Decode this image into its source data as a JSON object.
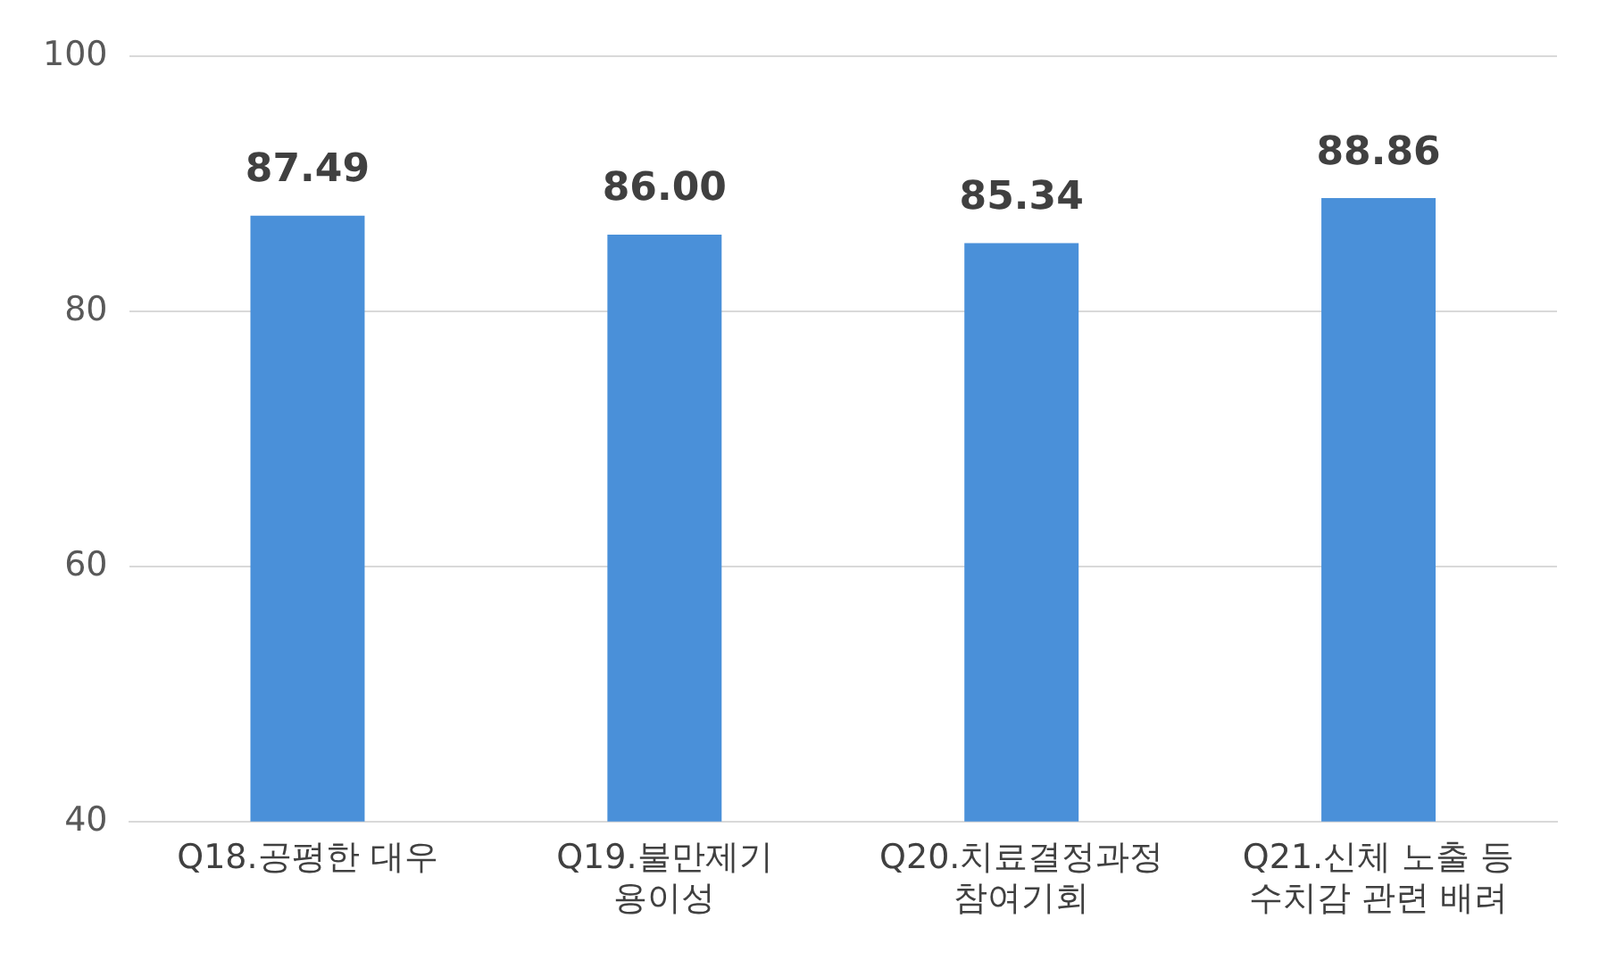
{
  "chart_data": {
    "type": "bar",
    "categories": [
      "Q18.공평한 대우",
      "Q19.불만제기\n용이성",
      "Q20.치료결정과정\n참여기회",
      "Q21.신체 노출 등\n수치감 관련 배려"
    ],
    "values": [
      87.49,
      86.0,
      85.34,
      88.86
    ],
    "color": "#4a90d9",
    "ylim": [
      40,
      100
    ],
    "yticks": [
      40,
      60,
      80,
      100
    ],
    "grid": "y",
    "legend": false,
    "value_labels": [
      "87.49",
      "86.00",
      "85.34",
      "88.86"
    ]
  }
}
